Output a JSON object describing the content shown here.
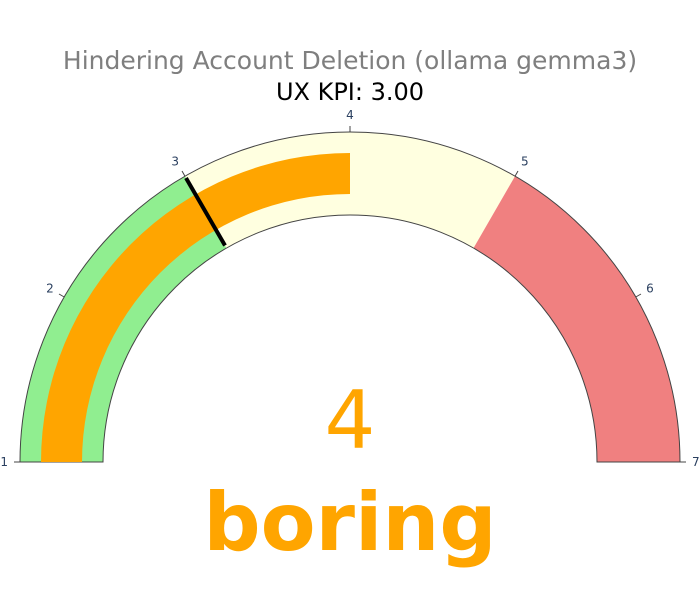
{
  "chart_data": {
    "type": "gauge",
    "title": "Hindering Account Deletion (ollama gemma3)",
    "subtitle": "UX KPI: 3.00",
    "range": [
      1,
      7
    ],
    "value": 4,
    "value_label": "boring",
    "threshold": 3,
    "ticks": [
      "1",
      "2",
      "3",
      "4",
      "5",
      "6",
      "7"
    ],
    "steps": [
      {
        "range": [
          1,
          3
        ],
        "color": "#90ee90"
      },
      {
        "range": [
          3,
          5
        ],
        "color": "#ffffe0"
      },
      {
        "range": [
          5,
          7
        ],
        "color": "#f08080"
      }
    ],
    "bar_color": "#ffa500",
    "threshold_color": "#000000",
    "value_color": "#ffa500"
  }
}
